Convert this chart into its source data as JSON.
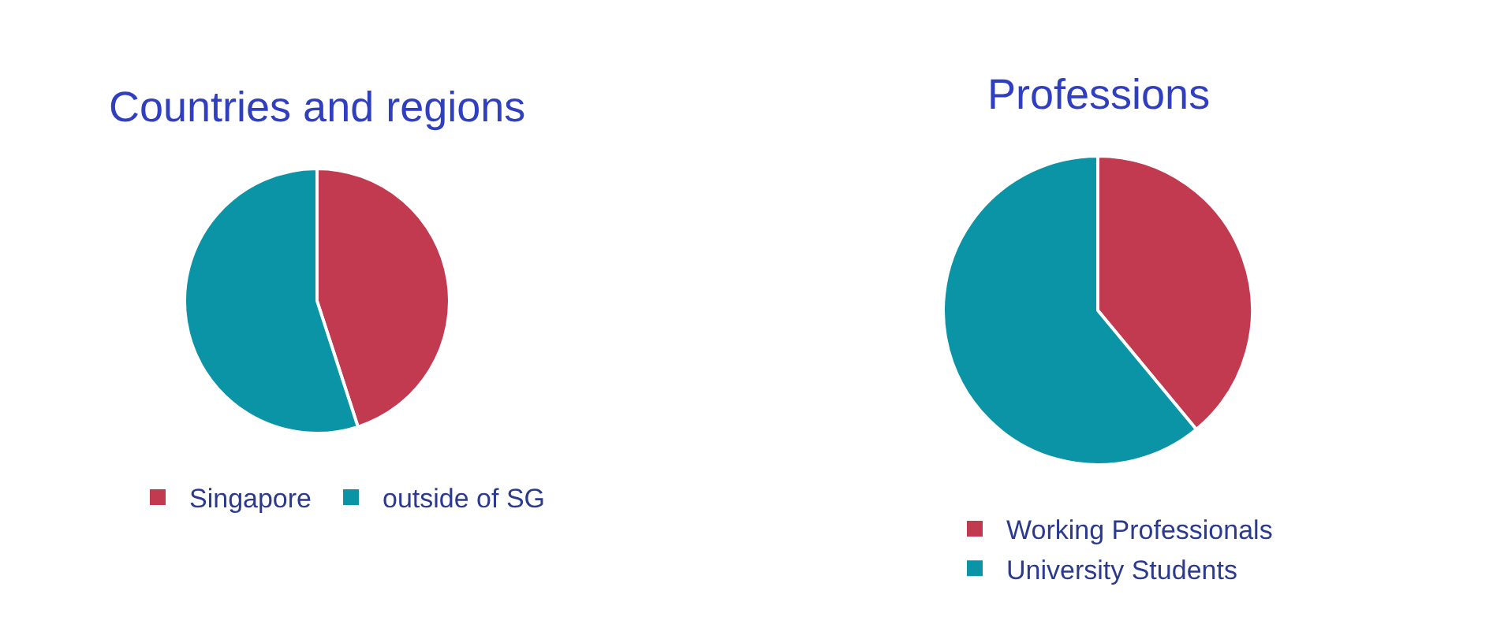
{
  "chart_data": [
    {
      "type": "pie",
      "title": "Countries and regions",
      "categories": [
        "Singapore",
        "outside of SG"
      ],
      "values": [
        45,
        55
      ],
      "colors": [
        "#c23a50",
        "#0b93a6"
      ],
      "legend": "bottom"
    },
    {
      "type": "pie",
      "title": "Professions",
      "categories": [
        "Working Professionals",
        "University Students"
      ],
      "values": [
        39,
        61
      ],
      "colors": [
        "#c23a50",
        "#0b93a6"
      ],
      "legend": "bottom"
    }
  ]
}
